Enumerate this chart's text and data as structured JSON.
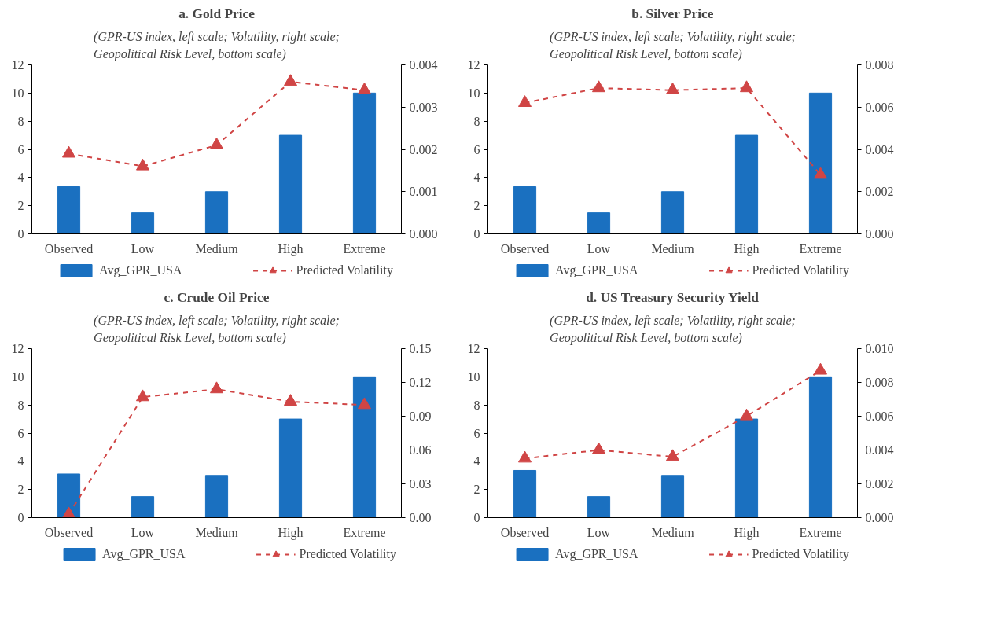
{
  "chart_data": [
    {
      "type": "bar",
      "title": "a. Gold Price",
      "subtitle": "(GPR-US index, left scale; Volatility, right scale;\nGeopolitical Risk Level, bottom scale)",
      "categories": [
        "Observed",
        "Low",
        "Medium",
        "High",
        "Extreme"
      ],
      "ylim": [
        0,
        12
      ],
      "yticks": [
        0,
        2,
        4,
        6,
        8,
        10,
        12
      ],
      "y2lim": [
        0,
        0.004
      ],
      "y2ticks": [
        {
          "value": 0,
          "label": "0.000"
        },
        {
          "value": 0.001,
          "label": "0.001"
        },
        {
          "value": 0.002,
          "label": "0.002"
        },
        {
          "value": 0.003,
          "label": "0.003"
        },
        {
          "value": 0.004,
          "label": "0.004"
        }
      ],
      "grid": false,
      "legend": "bottom",
      "series": [
        {
          "name": "Avg_GPR_USA",
          "type": "bar",
          "color": "#1a70c0",
          "values": [
            3.35,
            1.5,
            3.0,
            7.0,
            10.0
          ]
        },
        {
          "name": "Predicted Volatility",
          "type": "line",
          "axis": "y2",
          "color": "#d04545",
          "marker": "triangle",
          "line_style": "dashed",
          "values": [
            0.0019,
            0.0016,
            0.0021,
            0.0036,
            0.0034
          ]
        }
      ]
    },
    {
      "type": "bar",
      "title": "b. Silver Price",
      "subtitle": "(GPR-US index, left scale; Volatility, right scale;\nGeopolitical Risk Level, bottom scale)",
      "categories": [
        "Observed",
        "Low",
        "Medium",
        "High",
        "Extreme"
      ],
      "ylim": [
        0,
        12
      ],
      "yticks": [
        0,
        2,
        4,
        6,
        8,
        10,
        12
      ],
      "y2lim": [
        0,
        0.008
      ],
      "y2ticks": [
        {
          "value": 0,
          "label": "0.000"
        },
        {
          "value": 0.002,
          "label": "0.002"
        },
        {
          "value": 0.004,
          "label": "0.004"
        },
        {
          "value": 0.006,
          "label": "0.006"
        },
        {
          "value": 0.008,
          "label": "0.008"
        }
      ],
      "grid": false,
      "legend": "bottom",
      "series": [
        {
          "name": "Avg_GPR_USA",
          "type": "bar",
          "color": "#1a70c0",
          "values": [
            3.35,
            1.5,
            3.0,
            7.0,
            10.0
          ]
        },
        {
          "name": "Predicted Volatility",
          "type": "line",
          "axis": "y2",
          "color": "#d04545",
          "marker": "triangle",
          "line_style": "dashed",
          "values": [
            0.0062,
            0.0069,
            0.0068,
            0.0069,
            0.0028
          ]
        }
      ]
    },
    {
      "type": "bar",
      "title": "c. Crude Oil Price",
      "subtitle": "(GPR-US index, left scale; Volatility, right scale;\nGeopolitical Risk Level, bottom scale)",
      "categories": [
        "Observed",
        "Low",
        "Medium",
        "High",
        "Extreme"
      ],
      "ylim": [
        0,
        12
      ],
      "yticks": [
        0,
        2,
        4,
        6,
        8,
        10,
        12
      ],
      "y2lim": [
        0,
        0.15
      ],
      "y2ticks": [
        {
          "value": 0,
          "label": "0.00"
        },
        {
          "value": 0.03,
          "label": "0.03"
        },
        {
          "value": 0.06,
          "label": "0.06"
        },
        {
          "value": 0.09,
          "label": "0.09"
        },
        {
          "value": 0.12,
          "label": "0.12"
        },
        {
          "value": 0.15,
          "label": "0.15"
        }
      ],
      "grid": false,
      "legend": "bottom",
      "series": [
        {
          "name": "Avg_GPR_USA",
          "type": "bar",
          "color": "#1a70c0",
          "values": [
            3.1,
            1.5,
            3.0,
            7.0,
            10.0
          ]
        },
        {
          "name": "Predicted Volatility",
          "type": "line",
          "axis": "y2",
          "color": "#d04545",
          "marker": "triangle",
          "line_style": "dashed",
          "values": [
            0.003,
            0.107,
            0.114,
            0.103,
            0.1
          ]
        }
      ]
    },
    {
      "type": "bar",
      "title": "d. US Treasury Security Yield",
      "subtitle": "(GPR-US index, left scale; Volatility, right scale;\nGeopolitical Risk Level, bottom scale)",
      "categories": [
        "Observed",
        "Low",
        "Medium",
        "High",
        "Extreme"
      ],
      "ylim": [
        0,
        12
      ],
      "yticks": [
        0,
        2,
        4,
        6,
        8,
        10,
        12
      ],
      "y2lim": [
        0,
        0.01
      ],
      "y2ticks": [
        {
          "value": 0,
          "label": "0.000"
        },
        {
          "value": 0.002,
          "label": "0.002"
        },
        {
          "value": 0.004,
          "label": "0.004"
        },
        {
          "value": 0.006,
          "label": "0.006"
        },
        {
          "value": 0.008,
          "label": "0.008"
        },
        {
          "value": 0.01,
          "label": "0.010"
        }
      ],
      "grid": false,
      "legend": "bottom",
      "series": [
        {
          "name": "Avg_GPR_USA",
          "type": "bar",
          "color": "#1a70c0",
          "values": [
            3.35,
            1.5,
            3.0,
            7.0,
            10.0
          ]
        },
        {
          "name": "Predicted Volatility",
          "type": "line",
          "axis": "y2",
          "color": "#d04545",
          "marker": "triangle",
          "line_style": "dashed",
          "values": [
            0.0035,
            0.004,
            0.0036,
            0.006,
            0.0087
          ]
        }
      ]
    }
  ]
}
